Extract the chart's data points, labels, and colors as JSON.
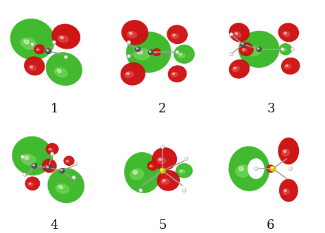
{
  "background_color": "#ffffff",
  "grid_rows": 2,
  "grid_cols": 3,
  "labels": [
    "1",
    "2",
    "3",
    "4",
    "5",
    "6"
  ],
  "label_fontsize": 13,
  "label_color": "#111111",
  "fig_width": 4.74,
  "fig_height": 3.4,
  "dpi": 100,
  "green_base": "#3db82a",
  "green_light": "#7de060",
  "green_dark": "#1a7010",
  "red_base": "#cc1111",
  "red_light": "#ee5555",
  "red_dark": "#880000",
  "white_atom": "#e8e8e8",
  "gray_atom": "#787878",
  "yellow_atom": "#d4c800",
  "bond_color": "#a0a0a0"
}
